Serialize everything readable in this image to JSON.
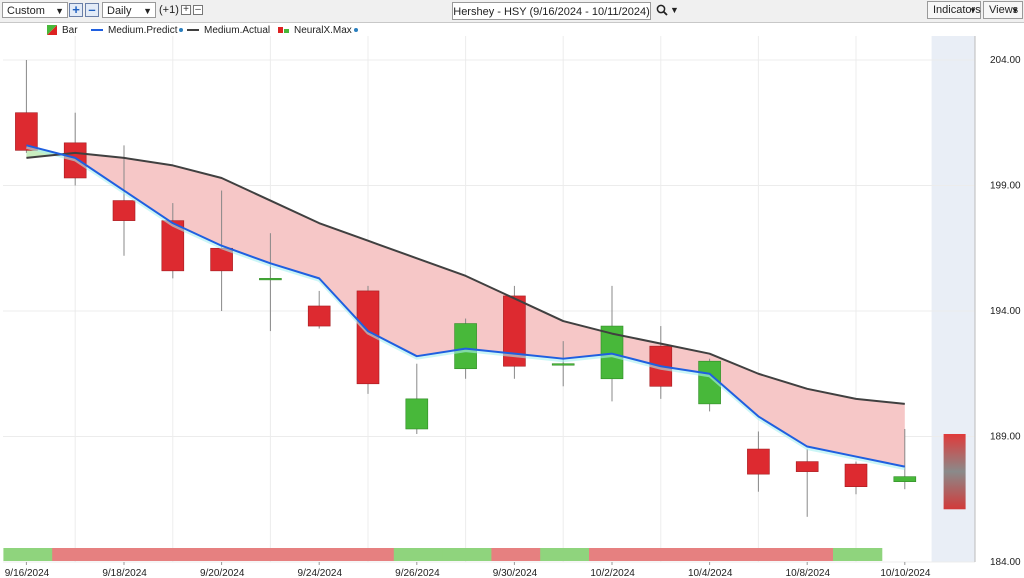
{
  "toolbar": {
    "period": "Custom",
    "interval": "Daily",
    "offset": "(+1)",
    "chart_title": "Hershey - HSY (9/16/2024 - 10/11/2024)",
    "indicators_label": "Indicators",
    "views_label": "Views"
  },
  "legend": [
    {
      "label": "Bar",
      "color": "#dd2222"
    },
    {
      "label": "Medium.Predict",
      "color": "#1f5fe0"
    },
    {
      "label": "Medium.Actual",
      "color": "#404040"
    },
    {
      "label": "NeuralX.Max",
      "color": "#dd2222"
    }
  ],
  "colors": {
    "up": "#48b83a",
    "down": "#dd2a30",
    "predict": "#1f5fe0",
    "actual": "#404040",
    "fill_above": "#f6c7c7",
    "fill_below": "#c9eec0",
    "band_up": "#8fd47d",
    "band_down": "#e68080",
    "forecast_bg": "#e9eef6"
  },
  "chart_data": {
    "type": "candlestick",
    "y_axis": {
      "min": 184,
      "max": 205,
      "ticks": [
        "204.00",
        "199.00",
        "194.00",
        "189.00",
        "184.00"
      ],
      "position": "right"
    },
    "x_tick_labels": [
      "9/16/2024",
      "9/18/2024",
      "9/20/2024",
      "9/24/2024",
      "9/26/2024",
      "9/30/2024",
      "10/2/2024",
      "10/4/2024",
      "10/8/2024",
      "10/10/2024"
    ],
    "grid": true,
    "candles": [
      {
        "date": "9/16/2024",
        "open": 201.9,
        "high": 204.0,
        "low": 200.3,
        "close": 200.4
      },
      {
        "date": "9/17/2024",
        "open": 200.7,
        "high": 201.9,
        "low": 199.0,
        "close": 199.3
      },
      {
        "date": "9/18/2024",
        "open": 198.4,
        "high": 200.6,
        "low": 196.2,
        "close": 197.6
      },
      {
        "date": "9/19/2024",
        "open": 197.6,
        "high": 198.3,
        "low": 195.3,
        "close": 195.6
      },
      {
        "date": "9/20/2024",
        "open": 196.5,
        "high": 198.8,
        "low": 194.0,
        "close": 195.6
      },
      {
        "date": "9/23/2024",
        "open": 195.3,
        "high": 197.1,
        "low": 193.2,
        "close": 195.3
      },
      {
        "date": "9/24/2024",
        "open": 194.2,
        "high": 194.8,
        "low": 193.3,
        "close": 193.4
      },
      {
        "date": "9/25/2024",
        "open": 194.8,
        "high": 195.0,
        "low": 190.7,
        "close": 191.1
      },
      {
        "date": "9/26/2024",
        "open": 189.3,
        "high": 191.9,
        "low": 189.1,
        "close": 190.5
      },
      {
        "date": "9/27/2024",
        "open": 191.7,
        "high": 193.7,
        "low": 191.3,
        "close": 193.5
      },
      {
        "date": "9/30/2024",
        "open": 194.6,
        "high": 195.0,
        "low": 191.3,
        "close": 191.8
      },
      {
        "date": "10/1/2024",
        "open": 191.9,
        "high": 192.8,
        "low": 191.0,
        "close": 191.9
      },
      {
        "date": "10/2/2024",
        "open": 191.3,
        "high": 195.0,
        "low": 190.4,
        "close": 193.4
      },
      {
        "date": "10/3/2024",
        "open": 192.6,
        "high": 193.4,
        "low": 190.5,
        "close": 191.0
      },
      {
        "date": "10/4/2024",
        "open": 190.3,
        "high": 192.1,
        "low": 190.0,
        "close": 192.0
      },
      {
        "date": "10/7/2024",
        "open": 188.5,
        "high": 189.2,
        "low": 186.8,
        "close": 187.5
      },
      {
        "date": "10/8/2024",
        "open": 188.0,
        "high": 188.5,
        "low": 185.8,
        "close": 187.6
      },
      {
        "date": "10/9/2024",
        "open": 187.9,
        "high": 188.0,
        "low": 186.7,
        "close": 187.0
      },
      {
        "date": "10/10/2024",
        "open": 187.2,
        "high": 189.3,
        "low": 186.9,
        "close": 187.4
      }
    ],
    "predict": [
      200.6,
      200.1,
      198.8,
      197.5,
      196.6,
      195.9,
      195.3,
      193.2,
      192.2,
      192.5,
      192.3,
      192.1,
      192.3,
      191.8,
      191.5,
      189.8,
      188.6,
      188.2,
      187.8
    ],
    "actual": [
      200.1,
      200.3,
      200.1,
      199.8,
      199.3,
      198.4,
      197.5,
      196.8,
      196.1,
      195.4,
      194.5,
      193.6,
      193.1,
      192.7,
      192.3,
      191.5,
      190.9,
      190.5,
      190.3
    ],
    "forecast": {
      "date": "10/11/2024",
      "high": 189.1,
      "low": 186.1
    },
    "signal_band": [
      "up",
      "down",
      "down",
      "down",
      "down",
      "down",
      "down",
      "down",
      "up",
      "up",
      "down",
      "up",
      "down",
      "down",
      "down",
      "down",
      "down",
      "up"
    ]
  }
}
